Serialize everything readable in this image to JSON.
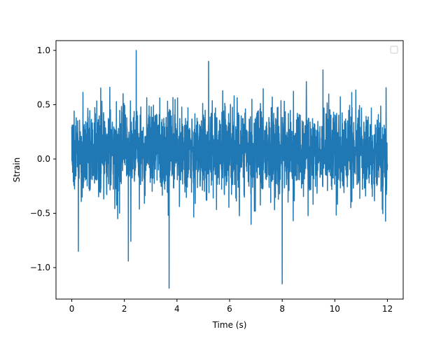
{
  "chart_data": {
    "type": "line",
    "title": "",
    "xlabel": "Time (s)",
    "ylabel": "Strain",
    "xlim": [
      -0.6,
      12.6
    ],
    "ylim": [
      -1.29,
      1.09
    ],
    "x_ticks": [
      0,
      2,
      4,
      6,
      8,
      10,
      12
    ],
    "x_tick_labels": [
      "0",
      "2",
      "4",
      "6",
      "8",
      "10",
      "12"
    ],
    "y_ticks": [
      -1.0,
      -0.5,
      0.0,
      0.5,
      1.0
    ],
    "y_tick_labels": [
      "−1.0",
      "−0.5",
      "0.0",
      "0.5",
      "1.0"
    ],
    "grid": false,
    "legend": {
      "placement": "top-right",
      "entries": []
    },
    "series": [
      {
        "color": "#1f77b4",
        "x_range": [
          0,
          12
        ],
        "typical_band": [
          -0.45,
          0.6
        ],
        "peaks": [
          {
            "x": 2.45,
            "y": 1.0
          },
          {
            "x": 3.7,
            "y": -1.19
          },
          {
            "x": 8.0,
            "y": -1.15
          },
          {
            "x": 5.2,
            "y": 0.9
          },
          {
            "x": 2.15,
            "y": -0.94
          },
          {
            "x": 9.55,
            "y": 0.82
          },
          {
            "x": 0.25,
            "y": -0.85
          }
        ]
      }
    ]
  }
}
